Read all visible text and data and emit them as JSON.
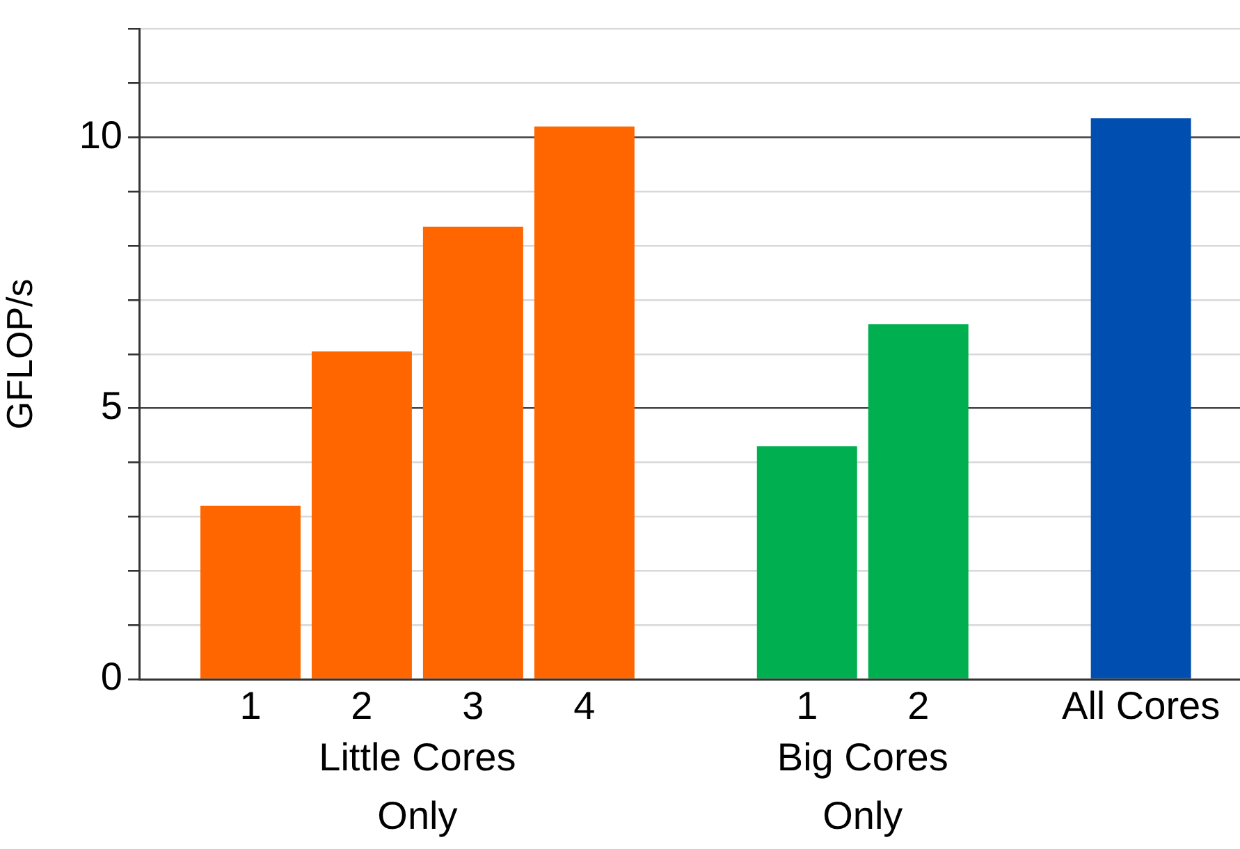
{
  "chart_data": {
    "type": "bar",
    "ylabel": "GFLOP/s",
    "categories": [
      "1",
      "2",
      "3",
      "4",
      null,
      "1",
      "2",
      null,
      "All Cores"
    ],
    "values": [
      3.2,
      6.05,
      8.35,
      10.2,
      null,
      4.3,
      6.55,
      null,
      10.35
    ],
    "colors": [
      "#ff6600",
      "#ff6600",
      "#ff6600",
      "#ff6600",
      null,
      "#00b050",
      "#00b050",
      null,
      "#004fb0"
    ],
    "ylim": [
      0,
      12
    ],
    "yticks": [
      0,
      {
        "value": 1,
        "label": null
      },
      {
        "value": 2,
        "label": null
      },
      {
        "value": 3,
        "label": null
      },
      {
        "value": 4,
        "label": null
      },
      5,
      {
        "value": 6,
        "label": null
      },
      {
        "value": 7,
        "label": null
      },
      {
        "value": 8,
        "label": null
      },
      {
        "value": 9,
        "label": null
      },
      10,
      {
        "value": 11,
        "label": null
      },
      {
        "value": 12,
        "label": null
      }
    ],
    "grid": true,
    "annotations": [
      "Little Cores Only",
      "Big Cores Only"
    ]
  }
}
